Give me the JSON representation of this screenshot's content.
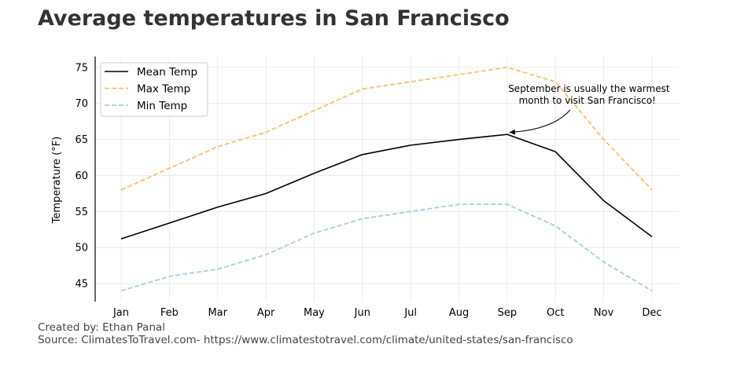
{
  "colors": {
    "mean": "#000000",
    "max": "#fdbf6f",
    "min": "#a6cee3",
    "title": "#333333",
    "grid": "#e6e6e6"
  },
  "chart_data": {
    "type": "line",
    "title": "Average temperatures in San Francisco",
    "xlabel": "",
    "ylabel": "Temperature (°F)",
    "categories": [
      "Jan",
      "Feb",
      "Mar",
      "Apr",
      "May",
      "Jun",
      "Jul",
      "Aug",
      "Sep",
      "Oct",
      "Nov",
      "Dec"
    ],
    "yticks": [
      45,
      50,
      55,
      60,
      65,
      70,
      75
    ],
    "ylim": [
      42.5,
      76.5
    ],
    "grid": true,
    "legend_position": "top-left",
    "series": [
      {
        "name": "Mean Temp",
        "style": "solid",
        "color": "#000000",
        "values": [
          51.2,
          53.4,
          55.6,
          57.5,
          60.3,
          62.9,
          64.2,
          65.0,
          65.7,
          63.3,
          56.5,
          51.5
        ]
      },
      {
        "name": "Max Temp",
        "style": "dashed",
        "color": "#fdbf6f",
        "values": [
          58,
          61,
          64,
          66,
          69,
          72,
          73,
          74,
          75,
          73,
          65,
          58
        ]
      },
      {
        "name": "Min Temp",
        "style": "dashed",
        "color": "#a6cee3",
        "values": [
          44,
          46,
          47,
          49,
          52,
          54,
          55,
          56,
          56,
          53,
          48,
          44
        ]
      }
    ],
    "annotation": {
      "text_line1": "September is usually the warmest",
      "text_line2": " month to visit San Francisco!",
      "target_category": "Sep",
      "target_series": "Mean Temp"
    }
  },
  "footer": {
    "credit": "Created by: Ethan Panal",
    "source": "Source: ClimatesToTravel.com- https://www.climatestotravel.com/climate/united-states/san-francisco"
  }
}
